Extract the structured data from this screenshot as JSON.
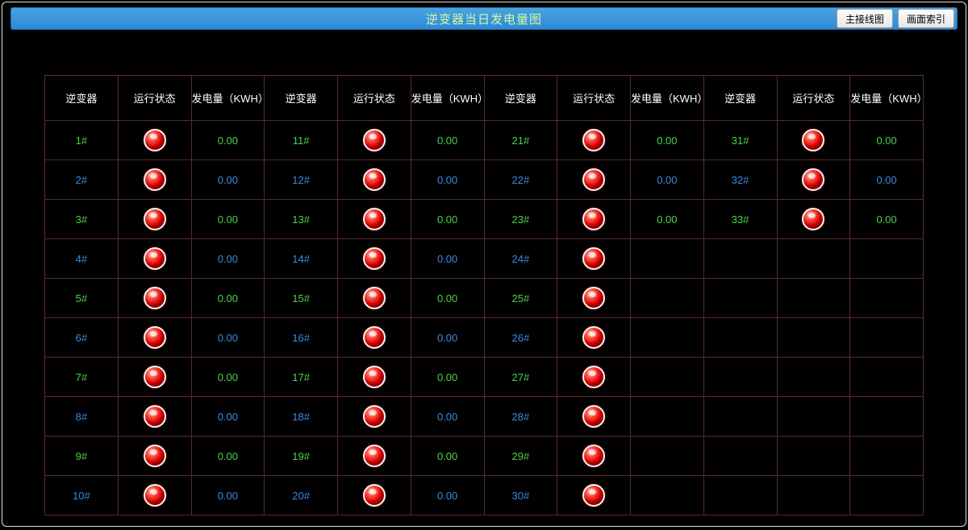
{
  "header": {
    "title": "逆变器当日发电量图",
    "buttons": {
      "main_wiring": "主接线图",
      "screen_index": "画面索引"
    }
  },
  "table": {
    "columns": {
      "inverter": "逆变器",
      "status": "运行状态",
      "kwh": "发电量（KWH）"
    },
    "groups": 4,
    "colors": {
      "id_odd": "#4cd24c",
      "id_even": "#3a8be0",
      "kwh_odd": "#4cd24c",
      "kwh_even": "#3a8be0",
      "header_text": "#ffffff",
      "border": "#5a2a2a",
      "title_text": "#d6f5a0",
      "titlebar_bg_top": "#4aa3e0",
      "titlebar_bg_bottom": "#2b8bd6",
      "led_red": "#e40000"
    },
    "rows": [
      [
        {
          "id": "1#",
          "status": "red",
          "kwh": "0.00"
        },
        {
          "id": "11#",
          "status": "red",
          "kwh": "0.00"
        },
        {
          "id": "21#",
          "status": "red",
          "kwh": "0.00"
        },
        {
          "id": "31#",
          "status": "red",
          "kwh": "0.00"
        }
      ],
      [
        {
          "id": "2#",
          "status": "red",
          "kwh": "0.00"
        },
        {
          "id": "12#",
          "status": "red",
          "kwh": "0.00"
        },
        {
          "id": "22#",
          "status": "red",
          "kwh": "0.00"
        },
        {
          "id": "32#",
          "status": "red",
          "kwh": "0.00"
        }
      ],
      [
        {
          "id": "3#",
          "status": "red",
          "kwh": "0.00"
        },
        {
          "id": "13#",
          "status": "red",
          "kwh": "0.00"
        },
        {
          "id": "23#",
          "status": "red",
          "kwh": "0.00"
        },
        {
          "id": "33#",
          "status": "red",
          "kwh": "0.00"
        }
      ],
      [
        {
          "id": "4#",
          "status": "red",
          "kwh": "0.00"
        },
        {
          "id": "14#",
          "status": "red",
          "kwh": "0.00"
        },
        {
          "id": "24#",
          "status": "red",
          "kwh": ""
        },
        {
          "id": "",
          "status": "",
          "kwh": ""
        }
      ],
      [
        {
          "id": "5#",
          "status": "red",
          "kwh": "0.00"
        },
        {
          "id": "15#",
          "status": "red",
          "kwh": "0.00"
        },
        {
          "id": "25#",
          "status": "red",
          "kwh": ""
        },
        {
          "id": "",
          "status": "",
          "kwh": ""
        }
      ],
      [
        {
          "id": "6#",
          "status": "red",
          "kwh": "0.00"
        },
        {
          "id": "16#",
          "status": "red",
          "kwh": "0.00"
        },
        {
          "id": "26#",
          "status": "red",
          "kwh": ""
        },
        {
          "id": "",
          "status": "",
          "kwh": ""
        }
      ],
      [
        {
          "id": "7#",
          "status": "red",
          "kwh": "0.00"
        },
        {
          "id": "17#",
          "status": "red",
          "kwh": "0.00"
        },
        {
          "id": "27#",
          "status": "red",
          "kwh": ""
        },
        {
          "id": "",
          "status": "",
          "kwh": ""
        }
      ],
      [
        {
          "id": "8#",
          "status": "red",
          "kwh": "0.00"
        },
        {
          "id": "18#",
          "status": "red",
          "kwh": "0.00"
        },
        {
          "id": "28#",
          "status": "red",
          "kwh": ""
        },
        {
          "id": "",
          "status": "",
          "kwh": ""
        }
      ],
      [
        {
          "id": "9#",
          "status": "red",
          "kwh": "0.00"
        },
        {
          "id": "19#",
          "status": "red",
          "kwh": "0.00"
        },
        {
          "id": "29#",
          "status": "red",
          "kwh": ""
        },
        {
          "id": "",
          "status": "",
          "kwh": ""
        }
      ],
      [
        {
          "id": "10#",
          "status": "red",
          "kwh": "0.00"
        },
        {
          "id": "20#",
          "status": "red",
          "kwh": "0.00"
        },
        {
          "id": "30#",
          "status": "red",
          "kwh": ""
        },
        {
          "id": "",
          "status": "",
          "kwh": ""
        }
      ]
    ]
  }
}
